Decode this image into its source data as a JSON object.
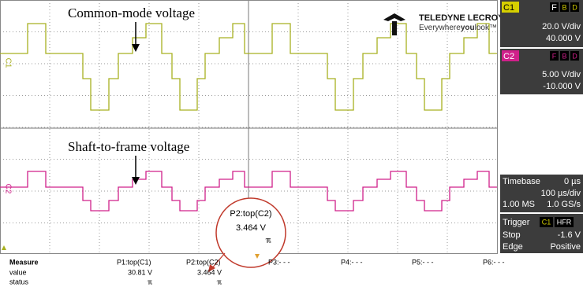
{
  "annotations": [
    "Common-mode voltage",
    "Shaft-to-frame voltage"
  ],
  "logo": {
    "brand": "TELEDYNE LECROY",
    "tagline_1": "Everywhere",
    "tagline_2": "you",
    "tagline_3": "look™"
  },
  "channel_labels": [
    "C1",
    "C2"
  ],
  "channels": [
    {
      "name": "C1",
      "flags": [
        "F",
        "B",
        "D"
      ],
      "scale": "20.0 V/div",
      "offset": "40.000 V"
    },
    {
      "name": "C2",
      "flags": [
        "F",
        "B",
        "D"
      ],
      "scale": "5.00 V/div",
      "offset": "-10.000 V"
    }
  ],
  "timebase": {
    "label": "Timebase",
    "delay": "0 µs",
    "scale": "100 µs/div",
    "samples": "1.00 MS",
    "rate": "1.0 GS/s"
  },
  "trigger": {
    "label": "Trigger",
    "source": "C1",
    "mode": "HFR",
    "state": "Stop",
    "level": "-1.6 V",
    "type": "Edge",
    "slope": "Positive"
  },
  "callout": {
    "param": "P2:top(C2)",
    "value": "3.464 V",
    "status": "ℼ"
  },
  "measure": {
    "header": [
      "Measure",
      "P1:top(C1)",
      "P2:top(C2)",
      "P3:- - -",
      "P4:- - -",
      "P5:- - -",
      "P6:- - -"
    ],
    "rows": [
      [
        "value",
        "30.81 V",
        "3.464 V"
      ],
      [
        "status",
        "ℼ",
        "ℼ"
      ]
    ]
  }
}
